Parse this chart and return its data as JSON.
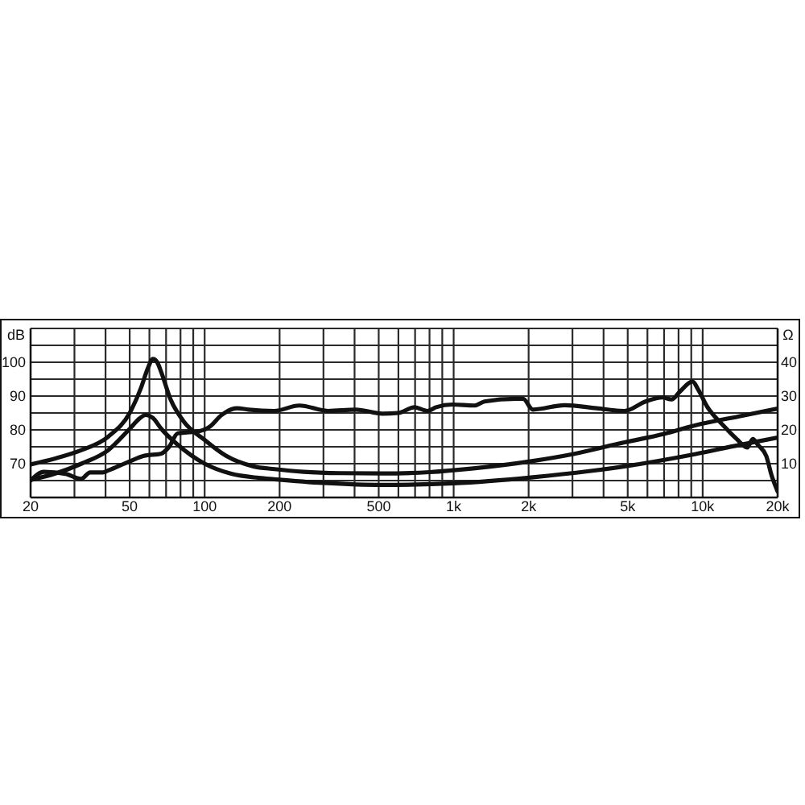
{
  "chart_data": {
    "type": "line",
    "ylabel": "dB",
    "y2label": "Ω",
    "log": "x",
    "grid": true,
    "xlim": [
      20,
      20000
    ],
    "xticks": [
      20,
      {
        "value": 30,
        "label": null
      },
      {
        "value": 40,
        "label": null
      },
      50,
      {
        "value": 60,
        "label": null
      },
      {
        "value": 70,
        "label": null
      },
      {
        "value": 80,
        "label": null
      },
      {
        "value": 90,
        "label": null
      },
      100,
      200,
      {
        "value": 300,
        "label": null
      },
      {
        "value": 400,
        "label": null
      },
      500,
      {
        "value": 600,
        "label": null
      },
      {
        "value": 700,
        "label": null
      },
      {
        "value": 800,
        "label": null
      },
      {
        "value": 900,
        "label": null
      },
      {
        "value": 1000,
        "label": "1k"
      },
      {
        "value": 2000,
        "label": "2k"
      },
      {
        "value": 3000,
        "label": null
      },
      {
        "value": 4000,
        "label": null
      },
      {
        "value": 5000,
        "label": "5k"
      },
      {
        "value": 6000,
        "label": null
      },
      {
        "value": 7000,
        "label": null
      },
      {
        "value": 8000,
        "label": null
      },
      {
        "value": 9000,
        "label": null
      },
      {
        "value": 10000,
        "label": "10k"
      },
      {
        "value": 20000,
        "label": "20k"
      }
    ],
    "ylim": [
      60,
      110
    ],
    "yticks": [
      {
        "value": 65,
        "label": null
      },
      70,
      {
        "value": 75,
        "label": null
      },
      80,
      {
        "value": 85,
        "label": null
      },
      90,
      {
        "value": 95,
        "label": null
      },
      100,
      {
        "value": 105,
        "label": null
      }
    ],
    "y2lim": [
      0,
      50
    ],
    "y2ticks": [
      10,
      20,
      30,
      40
    ],
    "series": [
      {
        "color": "#111111",
        "x": [
          20,
          22.6,
          27.6,
          31.9,
          34.7,
          39,
          41,
          50,
          57,
          67,
          72,
          78,
          86.5,
          95,
          105,
          117,
          135,
          150,
          190,
          240,
          313,
          404,
          518,
          600,
          695,
          785,
          850,
          990,
          1210,
          1330,
          1780,
          1900,
          2080,
          2790,
          3750,
          4850,
          5900,
          6900,
          7500,
          8100,
          9100,
          9600,
          10400,
          12100,
          13700,
          15100,
          15900,
          16700,
          18000,
          18900,
          20000
        ],
        "values": [
          65,
          67.6,
          67,
          65.5,
          67.4,
          67.4,
          68,
          70.7,
          72.3,
          73,
          75,
          79,
          79.3,
          79.6,
          81,
          84.4,
          86.4,
          86,
          85.6,
          87.2,
          85.6,
          86,
          84.8,
          85,
          86.7,
          85.6,
          86.7,
          87.5,
          87.2,
          88.4,
          89.2,
          89.2,
          86,
          87.3,
          86.4,
          85.6,
          88.4,
          89.6,
          89,
          91.3,
          94.3,
          91.9,
          87,
          81.3,
          77.3,
          74.8,
          77.3,
          75.5,
          72.3,
          66.6,
          61.8
        ]
      },
      {
        "color": "#111111",
        "axis": "y2",
        "x": [
          20,
          25,
          32,
          41,
          50,
          55.5,
          59,
          62,
          64.5,
          67,
          73,
          82,
          100,
          122,
          157,
          191,
          250,
          350,
          518,
          800,
          1200,
          2080,
          3000,
          4850,
          7000,
          9300,
          14000,
          20000
        ],
        "values": [
          9.8,
          11.5,
          14,
          18,
          25,
          32.4,
          38,
          41,
          40,
          37,
          29,
          22.7,
          17,
          12.3,
          9.2,
          8.4,
          7.6,
          7.2,
          7.1,
          7.5,
          8.6,
          10.8,
          12.8,
          16.3,
          18.8,
          21.3,
          24,
          26.3
        ]
      },
      {
        "color": "#111111",
        "axis": "y2",
        "x": [
          20,
          25,
          32,
          41,
          50,
          55,
          58,
          62,
          67,
          78,
          100,
          128,
          165,
          190,
          300,
          518,
          1000,
          2080,
          3500,
          4850,
          9300,
          14000,
          20000
        ],
        "values": [
          5.2,
          7,
          10,
          14,
          20.3,
          23.5,
          24.4,
          23.5,
          20.3,
          15.6,
          10,
          7,
          5.8,
          5.4,
          4.3,
          3.7,
          4.2,
          6,
          7.8,
          9.2,
          12.8,
          15.5,
          17.7
        ]
      }
    ]
  }
}
